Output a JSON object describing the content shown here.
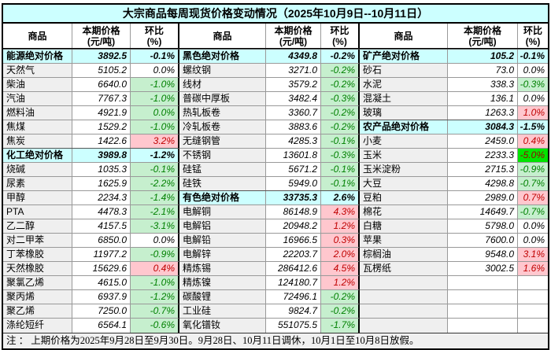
{
  "title": "大宗商品每周现货价格变动情况（2025年10月9日--10月11日）",
  "header": {
    "commodity": "商品",
    "price_line1": "本期价格",
    "price_line2": "(元/吨)",
    "pct_line1": "环比",
    "pct_line2": "(%)"
  },
  "footnote": "注 ： 上期价格为2025年9月28日至9月30日。9月28日、10月11日调休，10月1日至10月8日放假。",
  "colors": {
    "title_bg": "#CCFFFF",
    "section_bg": "#CCFFFF",
    "label_bg": "#EFEFEF",
    "down_bg": "#C6EFCE",
    "down_text": "#008000",
    "up_bg": "#FFC7CE",
    "up_text": "#C00000",
    "limit_down_bg": "#00E400",
    "limit_down_text": "#9C0006"
  },
  "groups": [
    {
      "rows": [
        {
          "name": "能源绝对价格",
          "price": "3892.5",
          "pct": "-0.1%",
          "type": "section",
          "style": "section"
        },
        {
          "name": "天然气",
          "price": "5105.2",
          "pct": "0.0%",
          "type": "item",
          "style": "flat"
        },
        {
          "name": "柴油",
          "price": "6640.0",
          "pct": "-1.0%",
          "type": "item",
          "style": "down"
        },
        {
          "name": "汽油",
          "price": "7767.3",
          "pct": "-1.0%",
          "type": "item",
          "style": "down"
        },
        {
          "name": "燃料油",
          "price": "4921.9",
          "pct": "0.0%",
          "type": "item",
          "style": "down"
        },
        {
          "name": "焦煤",
          "price": "1529.2",
          "pct": "-1.0%",
          "type": "item",
          "style": "down"
        },
        {
          "name": "焦炭",
          "price": "1422.6",
          "pct": "3.2%",
          "type": "item",
          "style": "up"
        },
        {
          "name": "化工绝对价格",
          "price": "3989.8",
          "pct": "-1.2%",
          "type": "section",
          "style": "section"
        },
        {
          "name": "烧碱",
          "price": "1035.3",
          "pct": "-0.1%",
          "type": "item",
          "style": "down"
        },
        {
          "name": "尿素",
          "price": "1625.9",
          "pct": "-2.2%",
          "type": "item",
          "style": "down"
        },
        {
          "name": "甲醇",
          "price": "2234.3",
          "pct": "-1.4%",
          "type": "item",
          "style": "down"
        },
        {
          "name": "PTA",
          "price": "4478.3",
          "pct": "-2.1%",
          "type": "item",
          "style": "down"
        },
        {
          "name": "乙二醇",
          "price": "4157.5",
          "pct": "-3.1%",
          "type": "item",
          "style": "down"
        },
        {
          "name": "对二甲苯",
          "price": "6850.0",
          "pct": "0.0%",
          "type": "item",
          "style": "flat"
        },
        {
          "name": "丁苯橡胶",
          "price": "11977.2",
          "pct": "-0.9%",
          "type": "item",
          "style": "down"
        },
        {
          "name": "天然橡胶",
          "price": "15629.6",
          "pct": "0.4%",
          "type": "item",
          "style": "up"
        },
        {
          "name": "聚氯乙烯",
          "price": "4615.0",
          "pct": "-1.0%",
          "type": "item",
          "style": "down"
        },
        {
          "name": "聚丙烯",
          "price": "6937.9",
          "pct": "-1.2%",
          "type": "item",
          "style": "down"
        },
        {
          "name": "聚乙烯",
          "price": "7250.0",
          "pct": "-0.7%",
          "type": "item",
          "style": "down"
        },
        {
          "name": "涤纶短纤",
          "price": "6564.1",
          "pct": "-0.6%",
          "type": "item",
          "style": "down"
        }
      ]
    },
    {
      "rows": [
        {
          "name": "黑色绝对价格",
          "price": "4349.8",
          "pct": "-0.2%",
          "type": "section",
          "style": "section"
        },
        {
          "name": "螺纹钢",
          "price": "3271.0",
          "pct": "-0.2%",
          "type": "item",
          "style": "down"
        },
        {
          "name": "线材",
          "price": "3579.2",
          "pct": "-0.2%",
          "type": "item",
          "style": "down"
        },
        {
          "name": "普碳中厚板",
          "price": "3482.4",
          "pct": "-0.3%",
          "type": "item",
          "style": "down"
        },
        {
          "name": "热轧板卷",
          "price": "3360.7",
          "pct": "-0.2%",
          "type": "item",
          "style": "down"
        },
        {
          "name": "冷轧板卷",
          "price": "3883.6",
          "pct": "-0.2%",
          "type": "item",
          "style": "down"
        },
        {
          "name": "无缝钢管",
          "price": "4285.3",
          "pct": "-0.1%",
          "type": "item",
          "style": "down"
        },
        {
          "name": "不锈钢",
          "price": "13601.8",
          "pct": "-0.3%",
          "type": "item",
          "style": "down"
        },
        {
          "name": "硅锰",
          "price": "5671.2",
          "pct": "-0.1%",
          "type": "item",
          "style": "down"
        },
        {
          "name": "硅铁",
          "price": "5949.0",
          "pct": "-0.1%",
          "type": "item",
          "style": "down"
        },
        {
          "name": "有色绝对价格",
          "price": "33735.3",
          "pct": "2.6%",
          "type": "section",
          "style": "section"
        },
        {
          "name": "电解铜",
          "price": "86148.9",
          "pct": "4.3%",
          "type": "item",
          "style": "up"
        },
        {
          "name": "电解铝",
          "price": "20948.2",
          "pct": "1.2%",
          "type": "item",
          "style": "up"
        },
        {
          "name": "电解铅",
          "price": "16966.5",
          "pct": "0.3%",
          "type": "item",
          "style": "up"
        },
        {
          "name": "电解锌",
          "price": "22203.7",
          "pct": "2.0%",
          "type": "item",
          "style": "up"
        },
        {
          "name": "精炼锡",
          "price": "286412.6",
          "pct": "4.5%",
          "type": "item",
          "style": "up"
        },
        {
          "name": "精炼镍",
          "price": "124180.7",
          "pct": "1.2%",
          "type": "item",
          "style": "up"
        },
        {
          "name": "碳酸锂",
          "price": "72496.1",
          "pct": "-0.2%",
          "type": "item",
          "style": "down"
        },
        {
          "name": "工业硅",
          "price": "9824.7",
          "pct": "-0.2%",
          "type": "item",
          "style": "down"
        },
        {
          "name": "氧化镨钕",
          "price": "551075.5",
          "pct": "-1.7%",
          "type": "item",
          "style": "down"
        }
      ]
    },
    {
      "rows": [
        {
          "name": "矿产绝对价格",
          "price": "105.2",
          "pct": "-0.1%",
          "type": "section",
          "style": "section"
        },
        {
          "name": "砂石",
          "price": "73.0",
          "pct": "0.0%",
          "type": "item",
          "style": "flat"
        },
        {
          "name": "水泥",
          "price": "338.3",
          "pct": "-0.3%",
          "type": "item",
          "style": "down"
        },
        {
          "name": "混凝土",
          "price": "136.1",
          "pct": "0.0%",
          "type": "item",
          "style": "flat"
        },
        {
          "name": "玻璃",
          "price": "1263.3",
          "pct": "1.0%",
          "type": "item",
          "style": "up"
        },
        {
          "name": "农产品绝对价格",
          "price": "3084.3",
          "pct": "-1.5%",
          "type": "section",
          "style": "section"
        },
        {
          "name": "小麦",
          "price": "2459.0",
          "pct": "0.4%",
          "type": "item",
          "style": "up"
        },
        {
          "name": "玉米",
          "price": "2233.3",
          "pct": "-5.0%",
          "type": "item",
          "style": "limit_down"
        },
        {
          "name": "玉米淀粉",
          "price": "2715.3",
          "pct": "-0.9%",
          "type": "item",
          "style": "down"
        },
        {
          "name": "大豆",
          "price": "4298.8",
          "pct": "-0.7%",
          "type": "item",
          "style": "down"
        },
        {
          "name": "豆粕",
          "price": "2989.0",
          "pct": "0.7%",
          "type": "item",
          "style": "up"
        },
        {
          "name": "棉花",
          "price": "14649.7",
          "pct": "-0.7%",
          "type": "item",
          "style": "down"
        },
        {
          "name": "白糖",
          "price": "5798.0",
          "pct": "0.0%",
          "type": "item",
          "style": "flat"
        },
        {
          "name": "苹果",
          "price": "7600.0",
          "pct": "0.0%",
          "type": "item",
          "style": "flat"
        },
        {
          "name": "棕榈油",
          "price": "9548.0",
          "pct": "3.1%",
          "type": "item",
          "style": "up"
        },
        {
          "name": "瓦楞纸",
          "price": "3002.5",
          "pct": "1.6%",
          "type": "item",
          "style": "up"
        },
        {
          "name": "",
          "price": "",
          "pct": "",
          "type": "empty",
          "style": "empty"
        },
        {
          "name": "",
          "price": "",
          "pct": "",
          "type": "empty",
          "style": "empty"
        },
        {
          "name": "",
          "price": "",
          "pct": "",
          "type": "empty",
          "style": "empty"
        },
        {
          "name": "",
          "price": "",
          "pct": "",
          "type": "empty",
          "style": "empty"
        }
      ]
    }
  ]
}
